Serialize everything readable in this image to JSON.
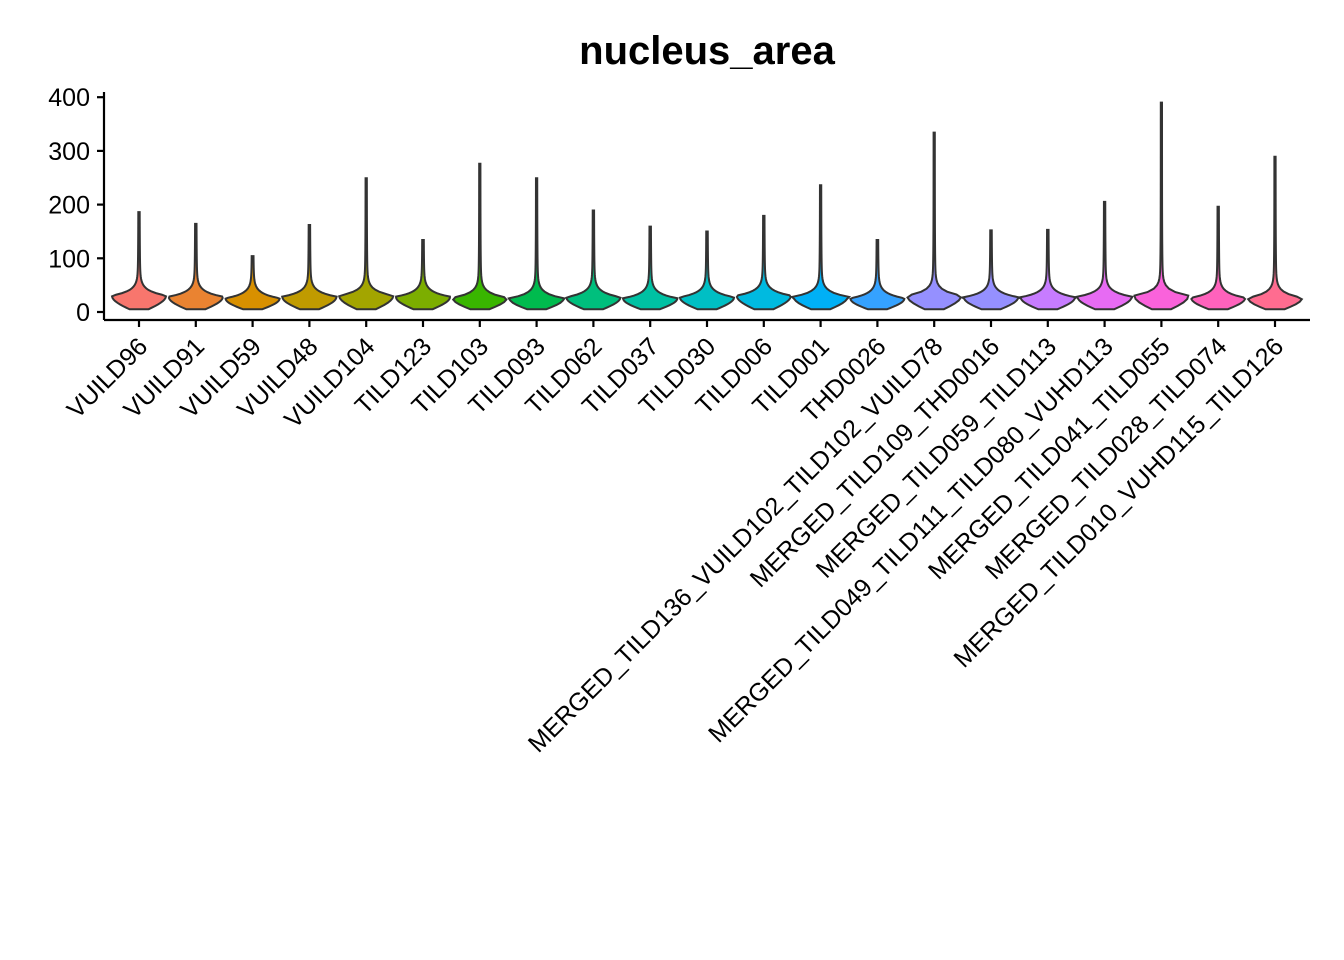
{
  "chart_data": {
    "type": "violin",
    "title": "nucleus_area",
    "xlabel": "",
    "ylabel": "",
    "ylim": [
      -14,
      410
    ],
    "yticks": [
      0,
      100,
      200,
      300,
      400
    ],
    "grid": false,
    "legend": "none",
    "categories": [
      "VUILD96",
      "VUILD91",
      "VUILD59",
      "VUILD48",
      "VUILD104",
      "TILD123",
      "TILD103",
      "TILD093",
      "TILD062",
      "TILD037",
      "TILD030",
      "TILD006",
      "TILD001",
      "THD0026",
      "MERGED_TILD136_VUILD102_TILD102_VUILD78",
      "MERGED_TILD109_THD0016",
      "MERGED_TILD059_TILD113",
      "MERGED_TILD049_TILD111_TILD080_VUHD113",
      "MERGED_TILD041_TILD055",
      "MERGED_TILD028_TILD074",
      "MERGED_TILD010_VUHD115_TILD126"
    ],
    "max_values": [
      186,
      164,
      104,
      162,
      249,
      134,
      276,
      249,
      189,
      159,
      150,
      179,
      236,
      134,
      334,
      152,
      153,
      205,
      390,
      196,
      289
    ],
    "mode_values": [
      30,
      28,
      25,
      28,
      30,
      28,
      26,
      25,
      27,
      25,
      27,
      30,
      28,
      25,
      30,
      27,
      27,
      28,
      30,
      26,
      26
    ],
    "min_values": [
      5,
      5,
      5,
      5,
      5,
      5,
      5,
      5,
      5,
      5,
      5,
      5,
      5,
      5,
      5,
      5,
      5,
      5,
      5,
      5,
      5
    ],
    "colors": [
      "#F8766D",
      "#EA8331",
      "#D89000",
      "#C09B00",
      "#A3A500",
      "#7CAE00",
      "#39B600",
      "#00BB4E",
      "#00BF7D",
      "#00C1A3",
      "#00BFC4",
      "#00BAE0",
      "#00B0F6",
      "#35A2FF",
      "#9590FF",
      "#9590FF",
      "#C77CFF",
      "#E76BF3",
      "#FA62DB",
      "#FF62BC",
      "#FF6C90"
    ]
  }
}
